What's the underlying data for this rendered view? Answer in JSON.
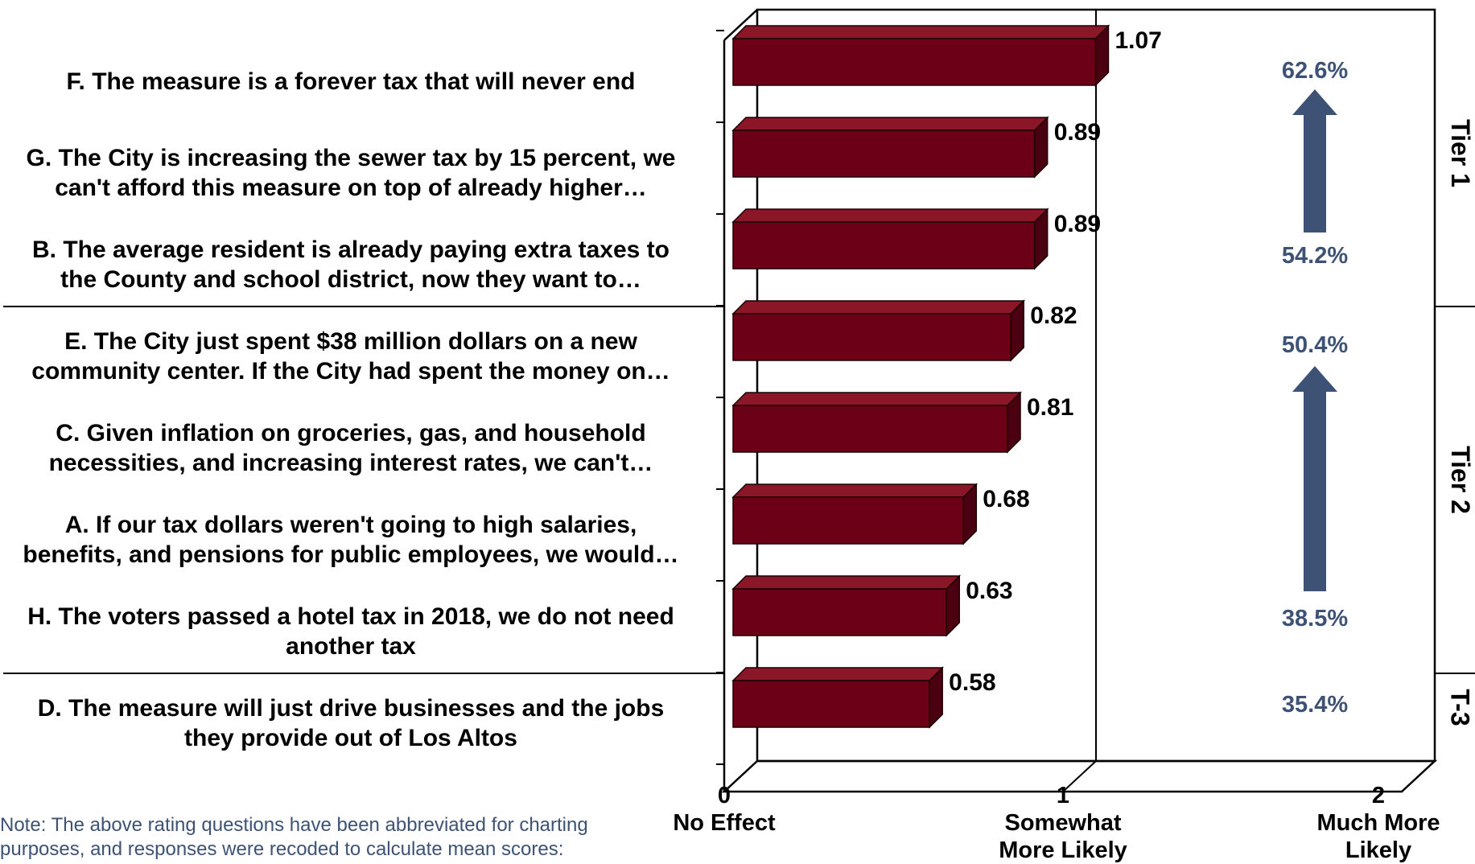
{
  "chart_data": {
    "type": "bar",
    "orientation": "horizontal",
    "categories": [
      [
        "F. The measure is a forever tax that will never end"
      ],
      [
        "G. The City is increasing the sewer tax by 15 percent, we",
        "can't afford this measure on top of already higher…"
      ],
      [
        "B. The average resident is already paying extra taxes to",
        "the County and school district, now they want to…"
      ],
      [
        "E. The City just spent $38 million dollars on a new",
        "community center. If the City had spent the money on…"
      ],
      [
        "C. Given inflation on groceries, gas, and household",
        "necessities, and increasing interest rates, we can't…"
      ],
      [
        "A. If our tax dollars weren't going to high salaries,",
        "benefits, and pensions for public employees, we would…"
      ],
      [
        "H. The voters passed a hotel tax in 2018, we do not need",
        "another tax"
      ],
      [
        "D. The measure will just drive businesses and the jobs",
        "they provide out of Los Altos"
      ]
    ],
    "values": [
      1.07,
      0.89,
      0.89,
      0.82,
      0.81,
      0.68,
      0.63,
      0.58
    ],
    "value_labels": [
      "1.07",
      "0.89",
      "0.89",
      "0.82",
      "0.81",
      "0.68",
      "0.63",
      "0.58"
    ],
    "xlim": [
      0,
      2
    ],
    "x_ticks": [
      {
        "value": 0,
        "number": "0",
        "label": [
          "No Effect"
        ]
      },
      {
        "value": 1,
        "number": "1",
        "label": [
          "Somewhat",
          "More  Likely"
        ]
      },
      {
        "value": 2,
        "number": "2",
        "label": [
          "Much More",
          "Likely"
        ]
      }
    ],
    "percent_labels": [
      "62.6%",
      "54.2%",
      "50.4%",
      "38.5%",
      "35.4%"
    ],
    "tiers": [
      {
        "label": "Tier 1",
        "rows": [
          0,
          2
        ]
      },
      {
        "label": "Tier 2",
        "rows": [
          3,
          6
        ]
      },
      {
        "label": "T-3",
        "rows": [
          7,
          7
        ]
      }
    ],
    "grid": "vertical at 1",
    "colors": {
      "bar_front": "#6b0016",
      "bar_top": "#8a1628",
      "bar_side": "#4a0010",
      "arrow": "#3d5275",
      "percent": "#3d5275"
    }
  },
  "note": [
    "Note: The above rating questions have been abbreviated for charting",
    "purposes, and responses were recoded to calculate mean scores:"
  ]
}
